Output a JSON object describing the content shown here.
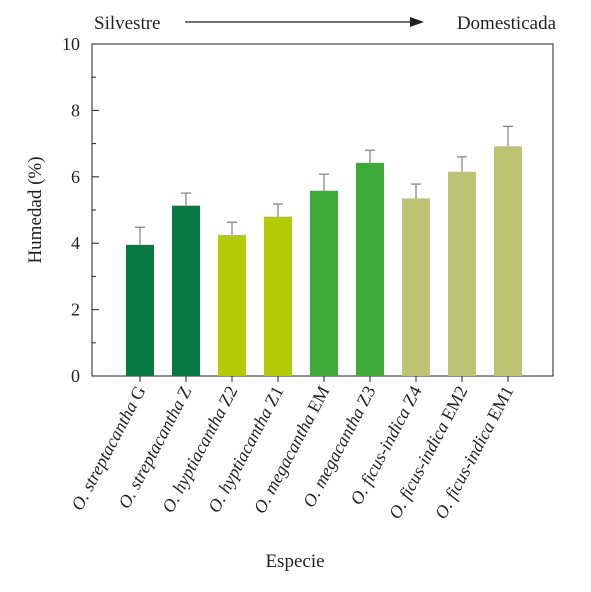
{
  "annotation": {
    "left_label": "Silvestre",
    "right_label": "Domesticada"
  },
  "chart_data": {
    "type": "bar",
    "xlabel": "Especie",
    "ylabel": "Humedad (%)",
    "ylim": [
      0,
      10
    ],
    "yticks": [
      0,
      2,
      4,
      6,
      8,
      10
    ],
    "grid": false,
    "categories": [
      {
        "italic": "O. streptacantha",
        "suffix": " G"
      },
      {
        "italic": "O. streptacantha",
        "suffix": " Z"
      },
      {
        "italic": "O. hyptiacantha",
        "suffix": " Z2"
      },
      {
        "italic": "O. hyptiacantha",
        "suffix": " Z1"
      },
      {
        "italic": "O. megacantha",
        "suffix": " EM"
      },
      {
        "italic": "O. megacantha",
        "suffix": " Z3"
      },
      {
        "italic": "O. ficus-indica",
        "suffix": " Z4"
      },
      {
        "italic": "O. ficus-indica",
        "suffix": " EM2"
      },
      {
        "italic": "O. ficus-indica",
        "suffix": " EM1"
      }
    ],
    "values": [
      3.95,
      5.13,
      4.25,
      4.8,
      5.58,
      6.42,
      5.35,
      6.15,
      6.92
    ],
    "errors": [
      0.53,
      0.38,
      0.38,
      0.38,
      0.5,
      0.38,
      0.43,
      0.45,
      0.6
    ],
    "colors": [
      "#077a40",
      "#077a40",
      "#b2cc08",
      "#b2cc08",
      "#3eaa38",
      "#3eaa38",
      "#bcc473",
      "#bcc473",
      "#bcc473"
    ],
    "error_color": "#888888"
  }
}
